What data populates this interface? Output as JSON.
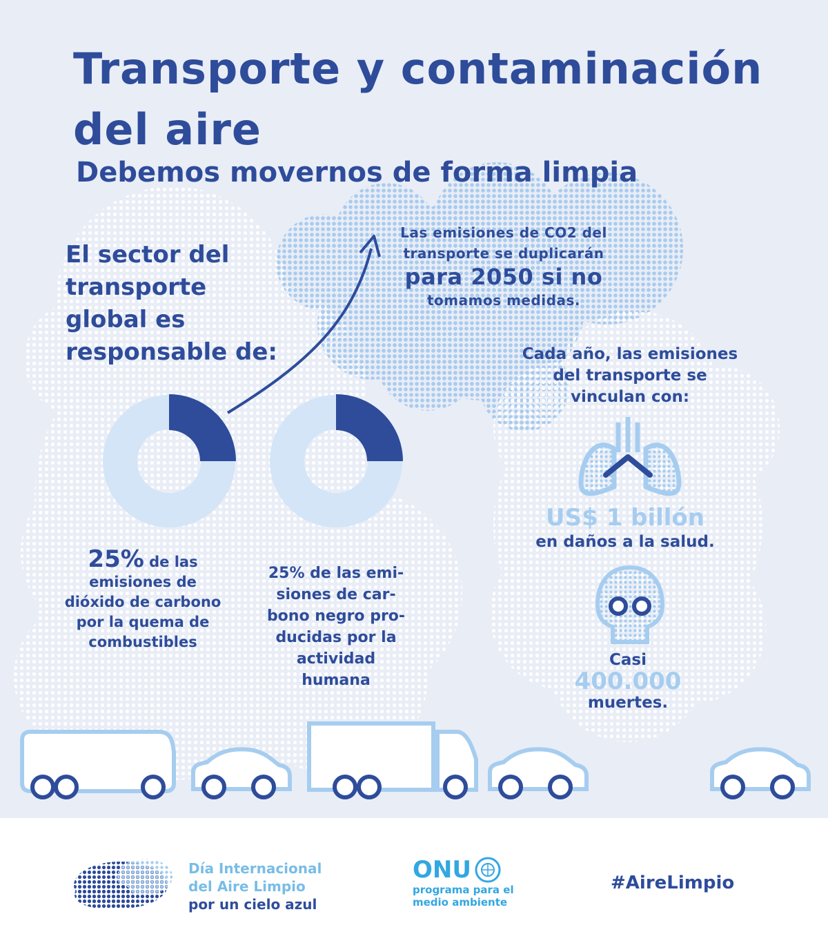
{
  "header": {
    "title_line1": "Transporte y contaminación",
    "title_line2": "del aire",
    "subtitle": "Debemos movernos de forma limpia"
  },
  "sector": {
    "line1": "El sector del",
    "line2": "transporte",
    "line3": "global es",
    "line4": "responsable de:"
  },
  "co2_projection": {
    "line1": "Las emisiones de CO2 del",
    "line2": "transporte se duplicarán",
    "line3": "para 2050 si no",
    "line4": "tomamos medidas."
  },
  "stats": [
    {
      "percent": 25,
      "value": "25%",
      "text_l1": " de las",
      "text_l2": "emisiones de",
      "text_l3": "dióxido de carbono",
      "text_l4": "por la quema de",
      "text_l5": "combustibles"
    },
    {
      "percent": 25,
      "l1": "25% de las emi-",
      "l2": "siones de car-",
      "l3": "bono negro pro-",
      "l4": "ducidas por la",
      "l5": "actividad",
      "l6": "humana"
    }
  ],
  "yearly": {
    "line1": "Cada año, las emisiones",
    "line2": "del transporte se",
    "line3": "vinculan con:",
    "health_value": "US$ 1 billón",
    "health_text": "en daños a la salud.",
    "deaths_prefix": "Casi",
    "deaths_value": "400.000",
    "deaths_text": "muertes."
  },
  "icons": {
    "lungs": "lungs-icon",
    "skull": "skull-icon",
    "arrow": "trend-arrow-icon",
    "vehicles": [
      "van-icon",
      "car-icon",
      "truck-icon",
      "car-icon",
      "car-icon"
    ]
  },
  "footer": {
    "event_l1": "Día Internacional",
    "event_l2": "del Aire Limpio",
    "event_l3": "por un cielo azul",
    "org_name": "ONU",
    "org_l1": "programa para el",
    "org_l2": "medio ambiente",
    "hashtag": "#AireLimpio"
  },
  "colors": {
    "dark_blue": "#2e4c9a",
    "light_blue": "#a6cdef",
    "pale_blue": "#d3e5f7",
    "background": "#e9edf6",
    "onu_blue": "#33a7e1"
  }
}
